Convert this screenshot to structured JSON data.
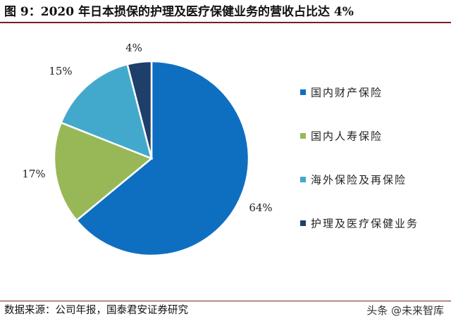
{
  "title": "图 9：2020 年日本损保的护理及医疗保健业务的营收占比达 4%",
  "source": "数据来源：公司年报，国泰君安证券研究",
  "watermark": "头条 @未来智库",
  "chart_data": {
    "type": "pie",
    "title": "图 9：2020 年日本损保的护理及医疗保健业务的营收占比达 4%",
    "slices": [
      {
        "label": "国内财产保险",
        "value": 64,
        "display": "64%",
        "color": "#0e6fc1"
      },
      {
        "label": "国内人寿保险",
        "value": 17,
        "display": "17%",
        "color": "#98b857"
      },
      {
        "label": "海外保险及再保险",
        "value": 15,
        "display": "15%",
        "color": "#43a9cc"
      },
      {
        "label": "护理及医疗保健业务",
        "value": 4,
        "display": "4%",
        "color": "#1f3f6b"
      }
    ],
    "start": "12 o'clock, clockwise",
    "legend_position": "right"
  }
}
